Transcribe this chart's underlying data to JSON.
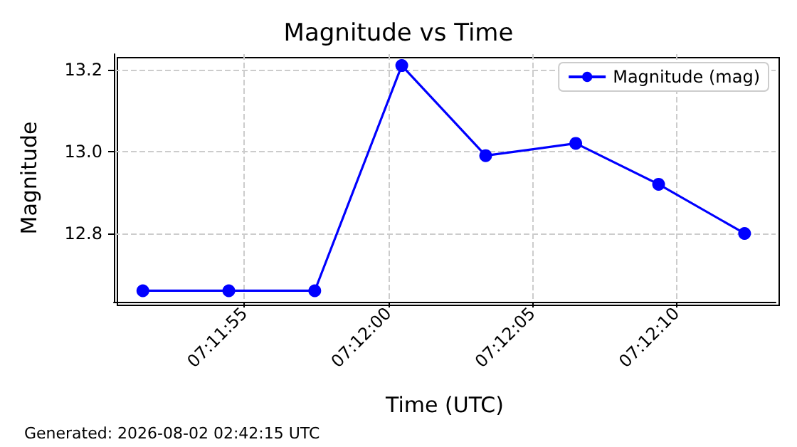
{
  "chart_data": {
    "type": "line",
    "title": "Magnitude vs Time",
    "xlabel": "Time (UTC)",
    "ylabel": "Magnitude",
    "x": [
      7.19763,
      7.19846,
      7.19929,
      7.20013,
      7.20094,
      7.20181,
      7.20261,
      7.20344
    ],
    "series": [
      {
        "name": "Magnitude (mag)",
        "color": "#0000ff",
        "values": [
          12.66,
          12.66,
          12.66,
          13.21,
          12.99,
          13.02,
          12.92,
          12.8
        ]
      }
    ],
    "xlim": [
      7.19735,
      7.20374
    ],
    "xticks": [
      {
        "value": 7.19861,
        "label": "07:11:55"
      },
      {
        "value": 7.2,
        "label": "07:12:00"
      },
      {
        "value": 7.20139,
        "label": "07:12:05"
      },
      {
        "value": 7.20278,
        "label": "07:12:10"
      }
    ],
    "ylim": [
      12.633,
      13.238
    ],
    "yticks": [
      {
        "value": 12.8,
        "label": "12.8"
      },
      {
        "value": 13.0,
        "label": "13.0"
      },
      {
        "value": 13.2,
        "label": "13.2"
      }
    ],
    "grid": true,
    "legend": "top right",
    "marker": "circle",
    "line_style": "solid",
    "annotations": [
      "Generated: 2026-08-02 02:42:15 UTC"
    ]
  }
}
